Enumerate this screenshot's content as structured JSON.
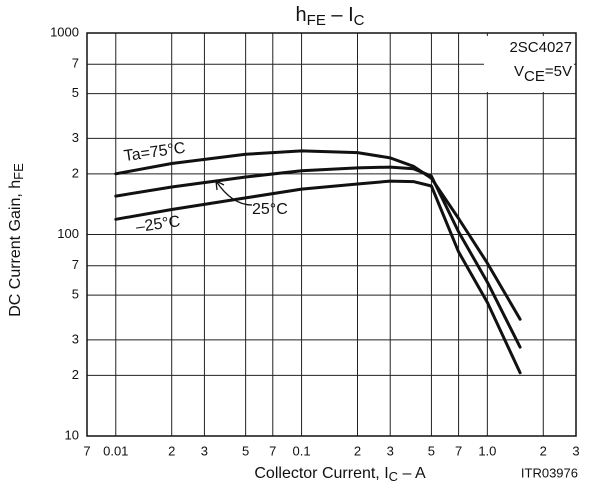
{
  "chart_data": {
    "type": "line",
    "title_parts": [
      "h",
      "FE",
      " – I",
      "C"
    ],
    "y_label_parts": [
      "DC Current Gain, h",
      "FE"
    ],
    "x_label_parts": [
      "Collector Current, I",
      "C",
      " – A"
    ],
    "part_number": "2SC4027",
    "condition_parts": [
      "V",
      "CE",
      "=5V"
    ],
    "figure_code": "ITR03976",
    "log_x": true,
    "log_y": true,
    "grid": true,
    "xlim": [
      0.007,
      3
    ],
    "xticks": [
      {
        "value": 0.007,
        "label": "7"
      },
      0.01,
      {
        "value": 0.02,
        "label": "2"
      },
      {
        "value": 0.03,
        "label": "3"
      },
      {
        "value": 0.05,
        "label": "5"
      },
      {
        "value": 0.07,
        "label": "7"
      },
      0.1,
      {
        "value": 0.2,
        "label": "2"
      },
      {
        "value": 0.3,
        "label": "3"
      },
      {
        "value": 0.5,
        "label": "5"
      },
      {
        "value": 0.7,
        "label": "7"
      },
      {
        "value": 1,
        "label": "1.0"
      },
      2,
      3
    ],
    "ylim": [
      10,
      1000
    ],
    "yticks": [
      10,
      {
        "value": 20,
        "label": "2"
      },
      {
        "value": 30,
        "label": "3"
      },
      {
        "value": 50,
        "label": "5"
      },
      {
        "value": 70,
        "label": "7"
      },
      100,
      {
        "value": 200,
        "label": "2"
      },
      {
        "value": 300,
        "label": "3"
      },
      {
        "value": 500,
        "label": "5"
      },
      {
        "value": 700,
        "label": "7"
      },
      1000
    ],
    "x": [
      0.01,
      0.02,
      0.05,
      0.1,
      0.2,
      0.3,
      0.4,
      0.5,
      0.7,
      1.0,
      1.5
    ],
    "series": [
      {
        "name": "Ta=75°C",
        "color": "#111111",
        "values": [
          200,
          225,
          250,
          260,
          255,
          240,
          218,
          190,
          120,
          72,
          38
        ]
      },
      {
        "name": "25°C",
        "color": "#111111",
        "values": [
          155,
          172,
          193,
          207,
          214,
          216,
          212,
          195,
          103,
          58,
          27.6
        ]
      },
      {
        "name": "–25°C",
        "color": "#111111",
        "values": [
          119,
          133,
          152,
          168,
          178,
          184,
          183,
          174,
          82,
          46,
          20.6
        ]
      }
    ]
  }
}
